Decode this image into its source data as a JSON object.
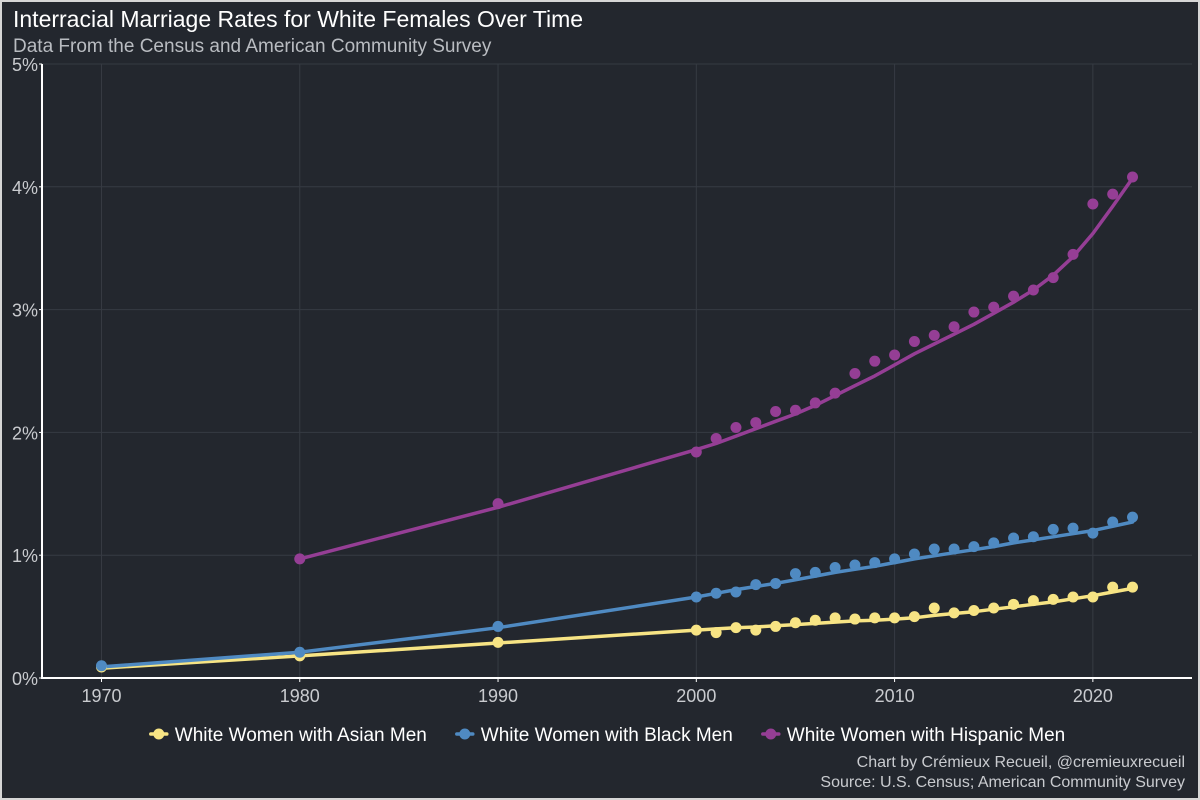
{
  "header": {
    "title": "Interracial Marriage Rates for White Females Over Time",
    "subtitle": "Data From the Census and American Community Survey"
  },
  "footer": {
    "credit_line1": "Chart by Crémieux Recueil, @cremieuxrecueil",
    "credit_line2": "Source: U.S. Census; American Community Survey"
  },
  "chart_data": {
    "type": "scatter",
    "title": "Interracial Marriage Rates for White Females Over Time",
    "subtitle": "Data From the Census and American Community Survey",
    "xlabel": "",
    "ylabel": "",
    "xlim": [
      1967,
      2025
    ],
    "ylim": [
      0,
      5
    ],
    "x_ticks": [
      1970,
      1980,
      1990,
      2000,
      2010,
      2020
    ],
    "x_tick_labels": [
      "1970",
      "1980",
      "1990",
      "2000",
      "2010",
      "2020"
    ],
    "y_ticks": [
      0,
      1,
      2,
      3,
      4,
      5
    ],
    "y_tick_labels": [
      "0%",
      "1%",
      "2%",
      "3%",
      "4%",
      "5%"
    ],
    "grid": true,
    "legend_position": "bottom",
    "series": [
      {
        "name": "White Women with Asian Men",
        "color": "#f7e484",
        "x": [
          1970,
          1980,
          1990,
          2000,
          2001,
          2002,
          2003,
          2004,
          2005,
          2006,
          2007,
          2008,
          2009,
          2010,
          2011,
          2012,
          2013,
          2014,
          2015,
          2016,
          2017,
          2018,
          2019,
          2020,
          2021,
          2022
        ],
        "y": [
          0.09,
          0.18,
          0.29,
          0.39,
          0.37,
          0.41,
          0.39,
          0.42,
          0.45,
          0.47,
          0.49,
          0.48,
          0.49,
          0.49,
          0.5,
          0.57,
          0.53,
          0.55,
          0.57,
          0.6,
          0.63,
          0.64,
          0.66,
          0.66,
          0.74,
          0.74
        ],
        "fit": [
          0.08,
          0.18,
          0.285,
          0.39,
          0.4,
          0.41,
          0.415,
          0.425,
          0.435,
          0.445,
          0.455,
          0.465,
          0.47,
          0.48,
          0.49,
          0.51,
          0.525,
          0.54,
          0.56,
          0.58,
          0.6,
          0.62,
          0.645,
          0.67,
          0.7,
          0.73
        ]
      },
      {
        "name": "White Women with Black Men",
        "color": "#4f8ac2",
        "x": [
          1970,
          1980,
          1990,
          2000,
          2001,
          2002,
          2003,
          2004,
          2005,
          2006,
          2007,
          2008,
          2009,
          2010,
          2011,
          2012,
          2013,
          2014,
          2015,
          2016,
          2017,
          2018,
          2019,
          2020,
          2021,
          2022
        ],
        "y": [
          0.1,
          0.21,
          0.42,
          0.66,
          0.69,
          0.7,
          0.76,
          0.77,
          0.85,
          0.86,
          0.9,
          0.92,
          0.94,
          0.97,
          1.01,
          1.05,
          1.05,
          1.07,
          1.1,
          1.14,
          1.15,
          1.21,
          1.22,
          1.18,
          1.27,
          1.31
        ],
        "fit": [
          0.09,
          0.21,
          0.41,
          0.66,
          0.69,
          0.72,
          0.745,
          0.77,
          0.8,
          0.83,
          0.86,
          0.885,
          0.91,
          0.94,
          0.97,
          0.995,
          1.02,
          1.045,
          1.07,
          1.1,
          1.125,
          1.15,
          1.175,
          1.2,
          1.235,
          1.27
        ]
      },
      {
        "name": "White Women with Hispanic Men",
        "color": "#953e95",
        "x": [
          1980,
          1990,
          2000,
          2001,
          2002,
          2003,
          2004,
          2005,
          2006,
          2007,
          2008,
          2009,
          2010,
          2011,
          2012,
          2013,
          2014,
          2015,
          2016,
          2017,
          2018,
          2019,
          2020,
          2021,
          2022
        ],
        "y": [
          0.97,
          1.42,
          1.84,
          1.95,
          2.04,
          2.08,
          2.17,
          2.18,
          2.24,
          2.32,
          2.48,
          2.58,
          2.63,
          2.74,
          2.79,
          2.86,
          2.98,
          3.02,
          3.11,
          3.16,
          3.26,
          3.45,
          3.86,
          3.94,
          4.08
        ],
        "fit": [
          0.97,
          1.39,
          1.86,
          1.91,
          1.97,
          2.03,
          2.09,
          2.15,
          2.22,
          2.3,
          2.38,
          2.46,
          2.55,
          2.64,
          2.72,
          2.8,
          2.88,
          2.97,
          3.06,
          3.16,
          3.28,
          3.43,
          3.62,
          3.84,
          4.07
        ]
      }
    ]
  }
}
